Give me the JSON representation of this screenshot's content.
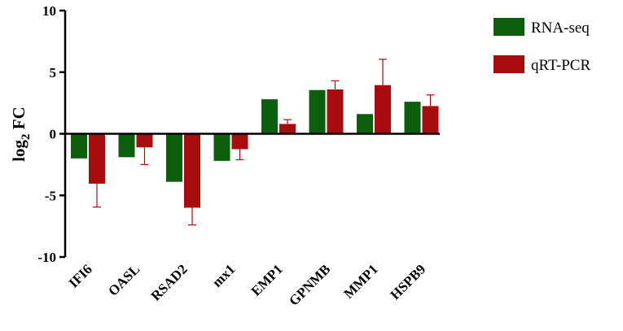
{
  "chart_data": {
    "type": "bar",
    "categories": [
      "IFI6",
      "OASL",
      "RSAD2",
      "mx1",
      "EMP1",
      "GPNMB",
      "MMP1",
      "HSPB9"
    ],
    "series": [
      {
        "name": "RNA-seq",
        "color": "#0b5e0b",
        "values": [
          -2.0,
          -1.9,
          -3.9,
          -2.2,
          2.8,
          3.55,
          1.6,
          2.6
        ],
        "errors": [
          0,
          0,
          0,
          0,
          0,
          0,
          0,
          0
        ]
      },
      {
        "name": "qRT-PCR",
        "color": "#a80d0d",
        "values": [
          -4.05,
          -1.1,
          -6.0,
          -1.25,
          0.8,
          3.6,
          3.95,
          2.25
        ],
        "errors": [
          1.9,
          1.4,
          1.4,
          0.85,
          0.35,
          0.7,
          2.1,
          0.9
        ]
      }
    ],
    "title": "",
    "xlabel": "",
    "ylabel_main": "log",
    "ylabel_sub": "2",
    "ylabel_tail": " FC",
    "ylim": [
      -10,
      10
    ],
    "yticks": [
      10,
      5,
      0,
      -5,
      -10
    ],
    "legend_position": "top-right",
    "grid": false
  }
}
